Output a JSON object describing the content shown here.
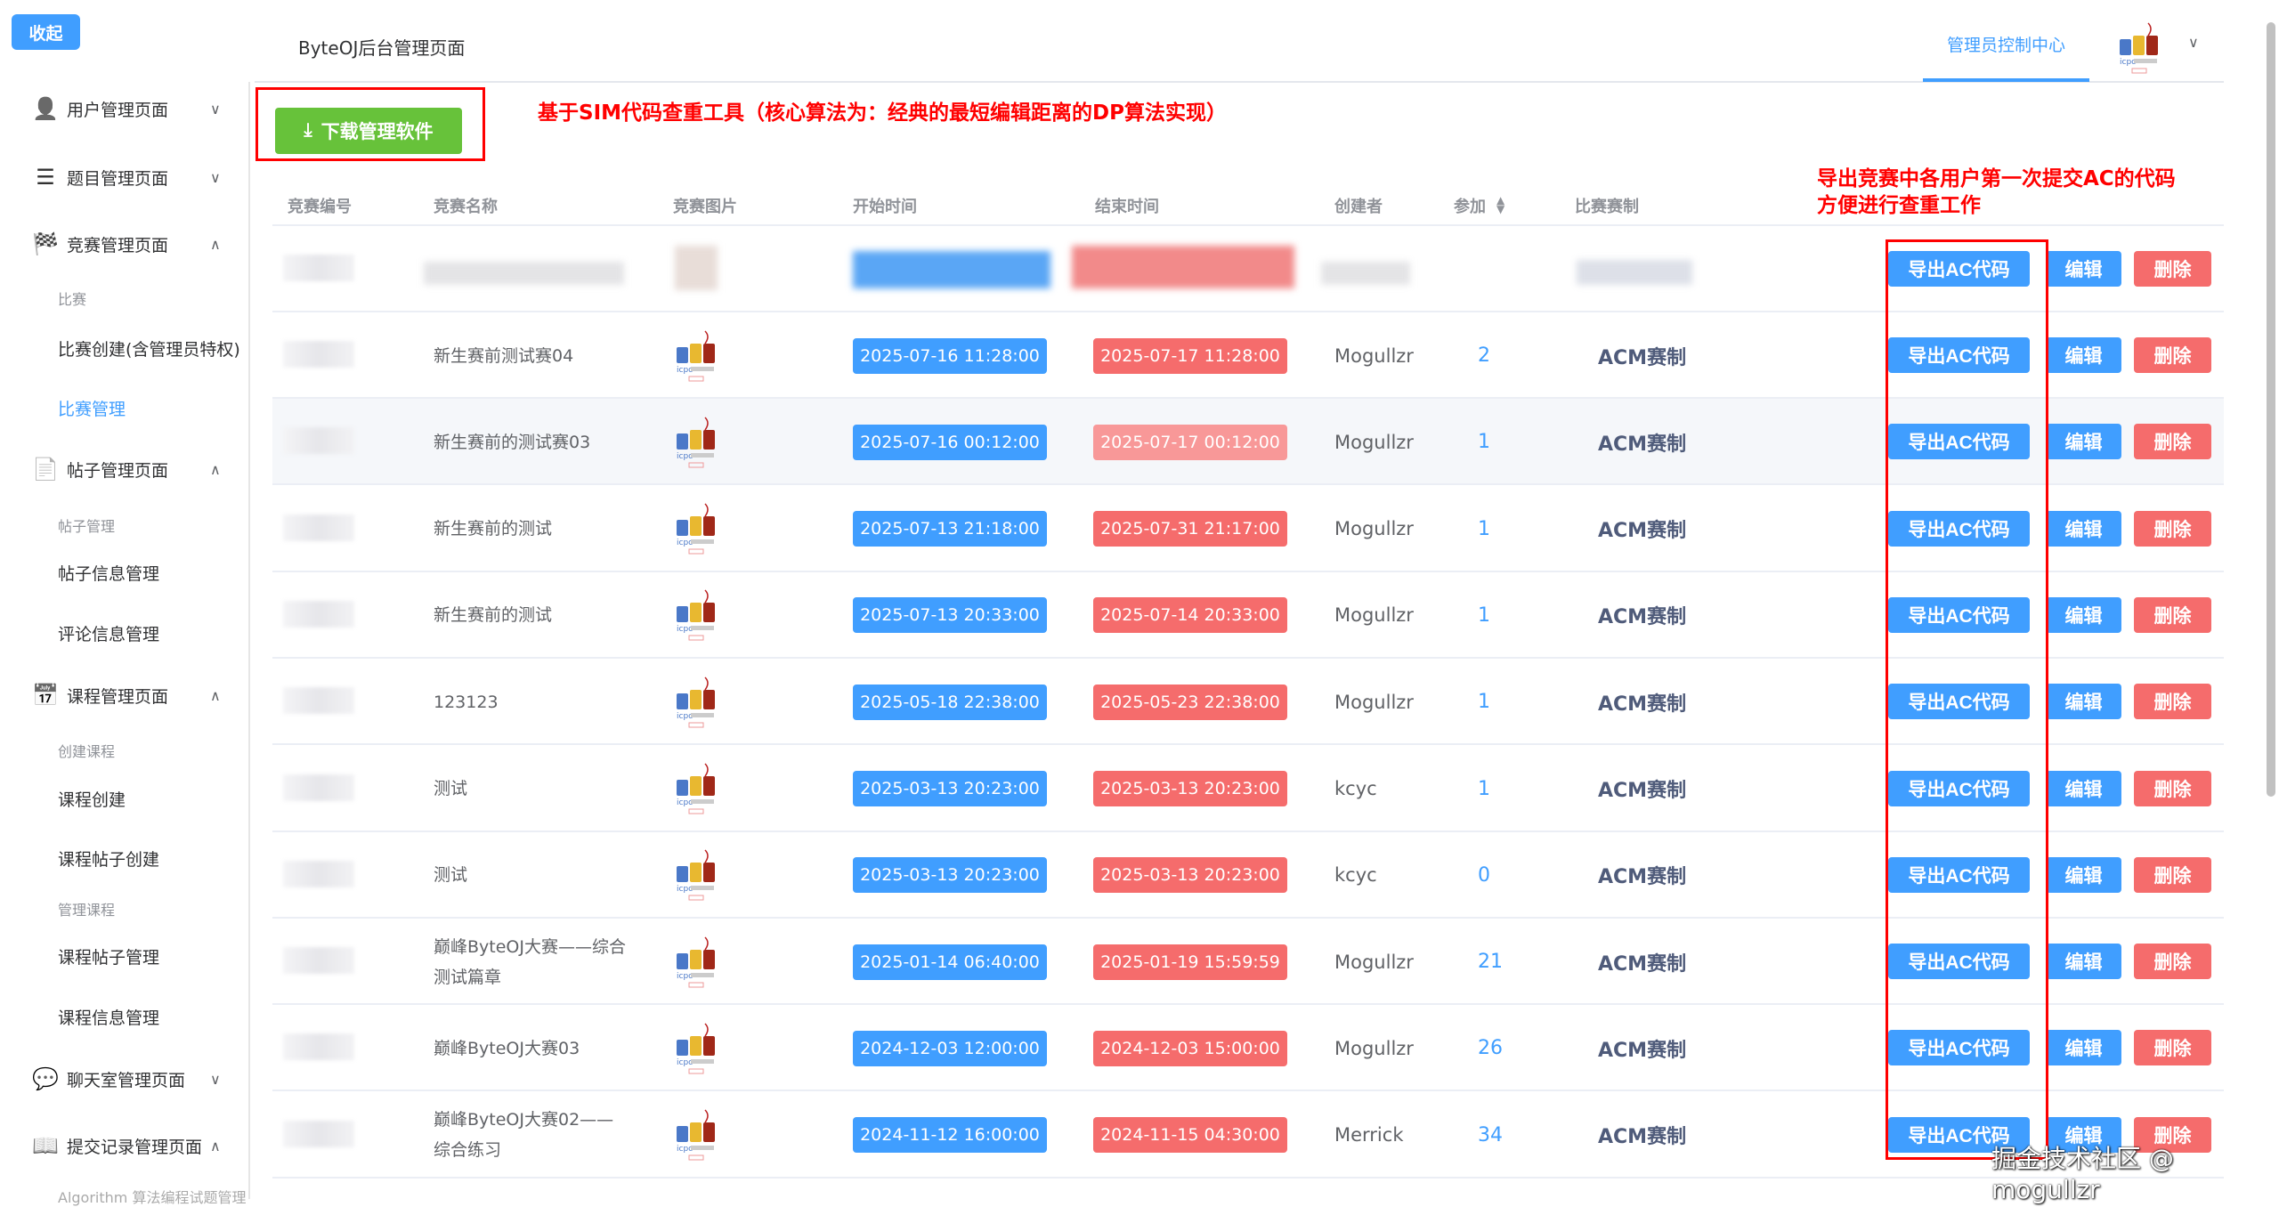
{
  "sidebar": {
    "collapse_label": "收起",
    "menus": [
      {
        "label": "用户管理页面",
        "icon": "user-icon",
        "expanded": false
      },
      {
        "label": "题目管理页面",
        "icon": "list-icon",
        "expanded": false
      },
      {
        "label": "竞赛管理页面",
        "icon": "checkered-flag-icon",
        "expanded": true
      },
      {
        "label": "帖子管理页面",
        "icon": "document-icon",
        "expanded": true
      },
      {
        "label": "课程管理页面",
        "icon": "calendar-star-icon",
        "expanded": true
      },
      {
        "label": "聊天室管理页面",
        "icon": "chat-icon",
        "expanded": false
      },
      {
        "label": "提交记录管理页面",
        "icon": "book-icon",
        "expanded": true
      }
    ],
    "groups": [
      "比赛",
      "帖子管理",
      "创建课程",
      "管理课程"
    ],
    "subitems": [
      "比赛创建(含管理员特权)",
      "比赛管理",
      "帖子信息管理",
      "评论信息管理",
      "课程创建",
      "课程帖子创建",
      "课程帖子管理",
      "课程信息管理",
      "Algorithm 算法编程试题管理"
    ],
    "active": "比赛管理"
  },
  "header": {
    "title": "ByteOJ后台管理页面",
    "admin_tab": "管理员控制中心"
  },
  "toolbar": {
    "download_label": "下载管理软件"
  },
  "annotations": {
    "note1": "基于SIM代码查重工具（核心算法为：经典的最短编辑距离的DP算法实现）",
    "note2_line1": "导出竞赛中各用户第一次提交AC的代码",
    "note2_line2": "方便进行查重工作"
  },
  "table": {
    "headers": [
      "竞赛编号",
      "竞赛名称",
      "竞赛图片",
      "开始时间",
      "结束时间",
      "创建者",
      "参加",
      "比赛赛制"
    ],
    "actions": {
      "export": "导出AC代码",
      "edit": "编辑",
      "delete": "删除"
    },
    "rows": [
      {
        "name": "新生赛前测试赛04",
        "start": "2025-07-16 11:28:00",
        "end": "2025-07-17 11:28:00",
        "creator": "Mogullzr",
        "count": "2",
        "format": "ACM赛制"
      },
      {
        "name": "新生赛前的测试赛03",
        "start": "2025-07-16 00:12:00",
        "end": "2025-07-17 00:12:00",
        "creator": "Mogullzr",
        "count": "1",
        "format": "ACM赛制"
      },
      {
        "name": "新生赛前的测试",
        "start": "2025-07-13 21:18:00",
        "end": "2025-07-31 21:17:00",
        "creator": "Mogullzr",
        "count": "1",
        "format": "ACM赛制"
      },
      {
        "name": "新生赛前的测试",
        "start": "2025-07-13 20:33:00",
        "end": "2025-07-14 20:33:00",
        "creator": "Mogullzr",
        "count": "1",
        "format": "ACM赛制"
      },
      {
        "name": "123123",
        "start": "2025-05-18 22:38:00",
        "end": "2025-05-23 22:38:00",
        "creator": "Mogullzr",
        "count": "1",
        "format": "ACM赛制"
      },
      {
        "name": "测试",
        "start": "2025-03-13 20:23:00",
        "end": "2025-03-13 20:23:00",
        "creator": "kcyc",
        "count": "1",
        "format": "ACM赛制"
      },
      {
        "name": "测试",
        "start": "2025-03-13 20:23:00",
        "end": "2025-03-13 20:23:00",
        "creator": "kcyc",
        "count": "0",
        "format": "ACM赛制"
      },
      {
        "name": "巅峰ByteOJ大赛——综合测试篇章",
        "start": "2025-01-14 06:40:00",
        "end": "2025-01-19 15:59:59",
        "creator": "Mogullzr",
        "count": "21",
        "format": "ACM赛制"
      },
      {
        "name": "巅峰ByteOJ大赛03",
        "start": "2024-12-03 12:00:00",
        "end": "2024-12-03 15:00:00",
        "creator": "Mogullzr",
        "count": "26",
        "format": "ACM赛制"
      },
      {
        "name": "巅峰ByteOJ大赛02——综合练习",
        "start": "2024-11-12 16:00:00",
        "end": "2024-11-15 04:30:00",
        "creator": "Merrick",
        "count": "34",
        "format": "ACM赛制"
      }
    ]
  },
  "watermark": "掘金技术社区 @ mogullzr",
  "colors": {
    "primary": "#409eff",
    "danger": "#f56c6c",
    "success": "#67c23a",
    "annotation": "#ff0000"
  }
}
